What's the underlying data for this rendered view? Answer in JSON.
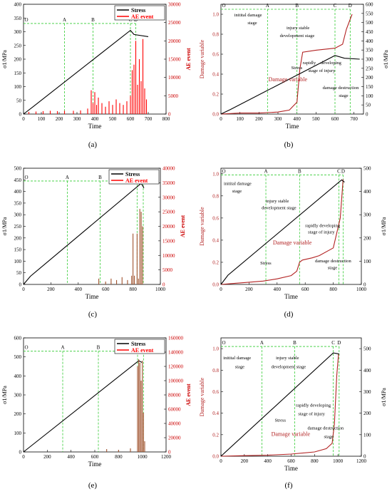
{
  "chart_data": [
    {
      "panel": "(a)",
      "type": "line",
      "xlabel": "Time",
      "ylabel": "σ1/MPa",
      "y2label": "AE event",
      "xlim": [
        0,
        800
      ],
      "ylim": [
        0,
        400
      ],
      "y2lim": [
        0,
        30000
      ],
      "xticks": [
        0,
        100,
        200,
        300,
        400,
        500,
        600,
        700,
        800
      ],
      "yticks": [
        0,
        50,
        100,
        150,
        200,
        250,
        300,
        350,
        400
      ],
      "y2ticks": [
        0,
        5000,
        10000,
        15000,
        20000,
        25000,
        30000
      ],
      "legend": [
        "Stress",
        "AE event"
      ],
      "legend_position": "top-right",
      "series": [
        {
          "name": "Stress",
          "color": "#000000",
          "axis": "left",
          "x": [
            0,
            50,
            600,
            620,
            700
          ],
          "y": [
            0,
            25,
            305,
            290,
            282
          ]
        },
        {
          "name": "AE event",
          "color": "#ff0000",
          "axis": "right",
          "kind": "spikes",
          "x": [
            30,
            70,
            110,
            150,
            190,
            230,
            280,
            320,
            360,
            380,
            390,
            400,
            410,
            420,
            440,
            460,
            480,
            500,
            520,
            540,
            560,
            580,
            600,
            610,
            620,
            630,
            640,
            650,
            660,
            670,
            680,
            690
          ],
          "y": [
            600,
            700,
            800,
            900,
            800,
            900,
            900,
            1000,
            1500,
            6500,
            3000,
            6000,
            2500,
            4500,
            3000,
            2000,
            3500,
            2500,
            4000,
            3000,
            2500,
            3500,
            5000,
            12000,
            13500,
            20000,
            8000,
            15000,
            9000,
            20500,
            7000,
            4000
          ]
        }
      ],
      "stage_x": [
        0,
        230,
        390,
        600,
        630
      ],
      "stage_labels": [
        "O",
        "A",
        "B",
        "C",
        "D"
      ],
      "stage_y": 330
    },
    {
      "panel": "(b)",
      "type": "line",
      "xlabel": "Time",
      "ylabel": "Damage variable",
      "y2label": "σ1/MPa",
      "xlim": [
        0,
        750
      ],
      "ylim": [
        0,
        1.1
      ],
      "y2lim": [
        0,
        600
      ],
      "xticks": [
        0,
        100,
        200,
        300,
        400,
        500,
        600,
        700
      ],
      "yticks": [
        0.0,
        0.2,
        0.4,
        0.6,
        0.8,
        1.0
      ],
      "y2ticks": [
        0,
        50,
        100,
        150,
        200,
        250,
        300,
        350,
        400,
        450,
        500,
        550,
        600
      ],
      "series": [
        {
          "name": "Damage variable",
          "color": "#b22222",
          "axis": "left",
          "x": [
            0,
            100,
            200,
            300,
            360,
            400,
            415,
            430,
            500,
            600,
            640,
            660,
            690
          ],
          "y": [
            0,
            0.01,
            0.01,
            0.02,
            0.04,
            0.12,
            0.45,
            0.62,
            0.64,
            0.66,
            0.7,
            0.85,
            1.0
          ]
        },
        {
          "name": "Stress",
          "color": "#000000",
          "axis": "right",
          "x": [
            0,
            50,
            600,
            650,
            730
          ],
          "y": [
            0,
            25,
            320,
            305,
            300
          ]
        }
      ],
      "stage_x": [
        0,
        245,
        400,
        600,
        680
      ],
      "stage_labels": [
        "O",
        "A",
        "B",
        "C",
        "D"
      ],
      "stage_y": 1.05,
      "annotations": [
        {
          "text": "initital damage",
          "x": 70,
          "y": 0.98
        },
        {
          "text": "stage",
          "x": 140,
          "y": 0.9
        },
        {
          "text": "injury stable",
          "x": 345,
          "y": 0.85
        },
        {
          "text": "development stage",
          "x": 310,
          "y": 0.77
        },
        {
          "text": "Stress",
          "x": 370,
          "y": 0.45
        },
        {
          "text": "rapidly",
          "x": 430,
          "y": 0.5
        },
        {
          "text": "developing",
          "x": 525,
          "y": 0.5
        },
        {
          "text": "stage of injury",
          "x": 460,
          "y": 0.42
        },
        {
          "text": "Damage variable",
          "x": 250,
          "y": 0.33
        },
        {
          "text": "damage destruction",
          "x": 535,
          "y": 0.25
        },
        {
          "text": "stage",
          "x": 620,
          "y": 0.17
        }
      ]
    },
    {
      "panel": "(c)",
      "type": "line",
      "xlabel": "Time",
      "ylabel": "σ1/MPa",
      "y2label": "AE event",
      "xlim": [
        0,
        1000
      ],
      "ylim": [
        0,
        500
      ],
      "y2lim": [
        0,
        40000
      ],
      "xticks": [
        0,
        200,
        400,
        600,
        800,
        1000
      ],
      "yticks": [
        0,
        50,
        100,
        150,
        200,
        250,
        300,
        350,
        400,
        450,
        500
      ],
      "y2ticks": [
        0,
        5000,
        10000,
        15000,
        20000,
        25000,
        30000,
        35000,
        40000
      ],
      "legend": [
        "Stress",
        "AE event"
      ],
      "legend_position": "top-right",
      "series": [
        {
          "name": "Stress",
          "color": "#000000",
          "axis": "left",
          "x": [
            0,
            50,
            860,
            880
          ],
          "y": [
            0,
            35,
            435,
            415
          ]
        },
        {
          "name": "AE event",
          "color": "#a0522d",
          "axis": "right",
          "kind": "spikes",
          "x": [
            550,
            600,
            640,
            680,
            720,
            760,
            790,
            800,
            810,
            830,
            840,
            850,
            860,
            870
          ],
          "y": [
            2000,
            1000,
            2000,
            1500,
            2500,
            1500,
            3000,
            17500,
            3000,
            17500,
            2000,
            26000,
            25000,
            20000
          ]
        }
      ],
      "stage_x": [
        0,
        320,
        560,
        830,
        875
      ],
      "stage_labels": [
        "O",
        "A",
        "B",
        "C",
        "D"
      ],
      "stage_y": 445
    },
    {
      "panel": "(d)",
      "type": "line",
      "xlabel": "Time",
      "ylabel": "Damage variable",
      "y2label": "σ1/MPa",
      "xlim": [
        0,
        1000
      ],
      "ylim": [
        0,
        1.05
      ],
      "y2lim": [
        0,
        500
      ],
      "xticks": [
        0,
        200,
        400,
        600,
        800,
        1000
      ],
      "yticks": [
        0.0,
        0.2,
        0.4,
        0.6,
        0.8,
        1.0
      ],
      "y2ticks": [
        0,
        100,
        200,
        300,
        400,
        500
      ],
      "series": [
        {
          "name": "Damage variable",
          "color": "#b22222",
          "axis": "left",
          "x": [
            0,
            100,
            200,
            300,
            400,
            500,
            540,
            560,
            580,
            650,
            700,
            800,
            850,
            870
          ],
          "y": [
            0,
            0.01,
            0.02,
            0.03,
            0.05,
            0.08,
            0.12,
            0.2,
            0.22,
            0.24,
            0.26,
            0.33,
            0.6,
            0.95
          ]
        },
        {
          "name": "Stress",
          "color": "#000000",
          "axis": "right",
          "x": [
            0,
            50,
            860,
            880
          ],
          "y": [
            0,
            40,
            450,
            440
          ]
        }
      ],
      "stage_x": [
        0,
        320,
        560,
        840,
        870
      ],
      "stage_labels": [
        "O",
        "A",
        "B",
        "C",
        "D"
      ],
      "stage_y": 0.99,
      "annotations": [
        {
          "text": "initital damage",
          "x": 20,
          "y": 0.9
        },
        {
          "text": "stage",
          "x": 80,
          "y": 0.83
        },
        {
          "text": "injury stable",
          "x": 320,
          "y": 0.74
        },
        {
          "text": "development stage",
          "x": 290,
          "y": 0.68
        },
        {
          "text": "rapidly developing",
          "x": 600,
          "y": 0.52
        },
        {
          "text": "stage of injury",
          "x": 620,
          "y": 0.46
        },
        {
          "text": "Damage variable",
          "x": 370,
          "y": 0.36
        },
        {
          "text": "Stress",
          "x": 280,
          "y": 0.18
        },
        {
          "text": "damage destruction",
          "x": 670,
          "y": 0.2
        },
        {
          "text": "stage",
          "x": 760,
          "y": 0.14
        }
      ]
    },
    {
      "panel": "(e)",
      "type": "line",
      "xlabel": "Time",
      "ylabel": "σ1/MPa",
      "y2label": "AE event",
      "xlim": [
        0,
        1200
      ],
      "ylim": [
        0,
        600
      ],
      "y2lim": [
        0,
        160000
      ],
      "xticks": [
        0,
        200,
        400,
        600,
        800,
        1000,
        1200
      ],
      "yticks": [
        0,
        100,
        200,
        300,
        400,
        500,
        600
      ],
      "y2ticks": [
        0,
        20000,
        40000,
        60000,
        80000,
        100000,
        120000,
        140000,
        160000
      ],
      "legend": [
        "Stress",
        "AE event"
      ],
      "legend_position": "top-right",
      "series": [
        {
          "name": "Stress",
          "color": "#000000",
          "axis": "left",
          "x": [
            0,
            970,
            1000
          ],
          "y": [
            0,
            480,
            470
          ]
        },
        {
          "name": "AE event",
          "color": "#a0522d",
          "axis": "right",
          "kind": "spikes",
          "x": [
            700,
            800,
            900,
            960,
            970,
            980,
            990,
            1000,
            1010,
            1020
          ],
          "y": [
            4000,
            3000,
            5000,
            120000,
            130000,
            125000,
            100000,
            128000,
            55000,
            15000
          ]
        }
      ],
      "stage_x": [
        0,
        330,
        630,
        960,
        1010
      ],
      "stage_labels": [
        "O",
        "A",
        "B",
        "C",
        "D"
      ],
      "stage_y": 530
    },
    {
      "panel": "(f)",
      "type": "line",
      "xlabel": "Time",
      "ylabel": "Damage variable",
      "y2label": "σ1/MPa",
      "xlim": [
        0,
        1200
      ],
      "ylim": [
        0,
        1.1
      ],
      "y2lim": [
        0,
        550
      ],
      "xticks": [
        0,
        200,
        400,
        600,
        800,
        1000,
        1200
      ],
      "yticks": [
        0.0,
        0.2,
        0.4,
        0.6,
        0.8,
        1.0
      ],
      "y2ticks": [
        0,
        100,
        200,
        300,
        400,
        500
      ],
      "series": [
        {
          "name": "Damage variable",
          "color": "#b22222",
          "axis": "left",
          "x": [
            0,
            200,
            400,
            600,
            800,
            900,
            950,
            970,
            990,
            1005
          ],
          "y": [
            0,
            0.005,
            0.01,
            0.02,
            0.04,
            0.07,
            0.12,
            0.3,
            0.75,
            0.95
          ]
        },
        {
          "name": "Stress",
          "color": "#000000",
          "axis": "right",
          "x": [
            0,
            960,
            1010
          ],
          "y": [
            0,
            480,
            475
          ]
        }
      ],
      "stage_x": [
        0,
        350,
        630,
        960,
        1010
      ],
      "stage_labels": [
        "O",
        "A",
        "B",
        "C",
        "D"
      ],
      "stage_y": 1.02,
      "annotations": [
        {
          "text": "initital damage",
          "x": 20,
          "y": 0.9
        },
        {
          "text": "stage",
          "x": 120,
          "y": 0.82
        },
        {
          "text": "injury stable",
          "x": 470,
          "y": 0.9
        },
        {
          "text": "development stage",
          "x": 430,
          "y": 0.82
        },
        {
          "text": "rapidly developing",
          "x": 640,
          "y": 0.46
        },
        {
          "text": "stage of injury",
          "x": 660,
          "y": 0.38
        },
        {
          "text": "Stress",
          "x": 460,
          "y": 0.32
        },
        {
          "text": "Damage variable",
          "x": 430,
          "y": 0.19
        },
        {
          "text": "damage destruction",
          "x": 740,
          "y": 0.25
        },
        {
          "text": "stage",
          "x": 880,
          "y": 0.17
        }
      ]
    }
  ]
}
